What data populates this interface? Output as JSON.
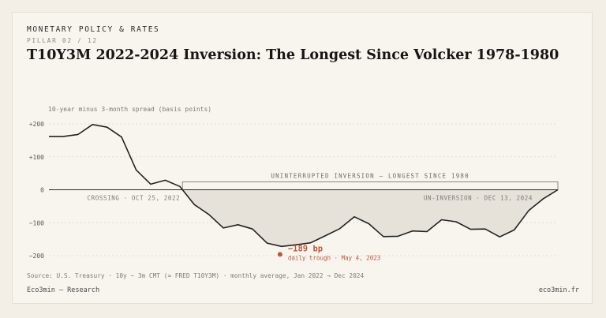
{
  "header": {
    "kicker": "MONETARY POLICY & RATES",
    "pillar": "PILLAR 02 / 12",
    "title": "T10Y3M 2022-2024 Inversion: The Longest Since Volcker 1978-1980"
  },
  "footer": {
    "source": "Source: U.S. Treasury · 10y − 3m CMT (≈ FRED T10Y3M) · monthly average, Jan 2022 → Dec 2024",
    "brand_left": "Eco3min — Research",
    "brand_right": "eco3min.fr"
  },
  "colors": {
    "line": "#222222",
    "fill": "#e6e2da",
    "accent": "#c0573a",
    "grid": "#e2ddd2"
  },
  "chart_data": {
    "type": "line",
    "title": "T10Y3M 2022-2024 Inversion: The Longest Since Volcker 1978-1980",
    "ylabel": "10-year minus 3-month spread (basis points)",
    "xlabel": "",
    "ylim": [
      -200,
      200
    ],
    "yticks": [
      200,
      100,
      0,
      -100,
      -200
    ],
    "ytick_labels": [
      "+200",
      "+100",
      "0",
      "−100",
      "−200"
    ],
    "grid": true,
    "x": [
      "2022-01",
      "2022-02",
      "2022-03",
      "2022-04",
      "2022-05",
      "2022-06",
      "2022-07",
      "2022-08",
      "2022-09",
      "2022-10",
      "2022-11",
      "2022-12",
      "2023-01",
      "2023-02",
      "2023-03",
      "2023-04",
      "2023-05",
      "2023-06",
      "2023-07",
      "2023-08",
      "2023-09",
      "2023-10",
      "2023-11",
      "2023-12",
      "2024-01",
      "2024-02",
      "2024-03",
      "2024-04",
      "2024-05",
      "2024-06",
      "2024-07",
      "2024-08",
      "2024-09",
      "2024-10",
      "2024-11",
      "2024-12"
    ],
    "values": [
      162,
      162,
      168,
      198,
      190,
      160,
      60,
      17,
      29,
      10,
      -45,
      -75,
      -116,
      -106,
      -119,
      -162,
      -172,
      -167,
      -161,
      -140,
      -118,
      -82,
      -103,
      -142,
      -141,
      -125,
      -127,
      -91,
      -97,
      -120,
      -119,
      -143,
      -122,
      -63,
      -27,
      0
    ],
    "annotations": {
      "crossing": "CROSSING · OCT 25, 2022",
      "uninversion": "UN-INVERSION · DEC 13, 2024",
      "band_label": "UNINTERRUPTED INVERSION — LONGEST SINCE 1980",
      "trough_value": "−189 bp",
      "trough_value_num": -189,
      "trough_date": "2023-05",
      "trough_label": "daily trough · May 4, 2023"
    }
  }
}
